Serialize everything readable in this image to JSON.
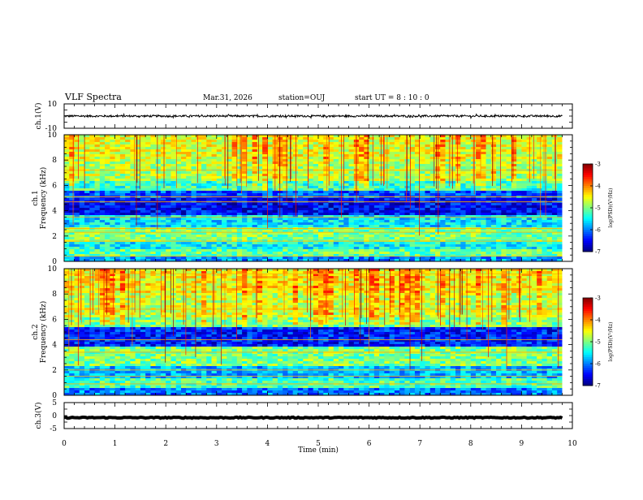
{
  "header": {
    "title": "VLF Spectra",
    "date": "Mar.31, 2026",
    "station": "station=OUJ",
    "start_ut": "start  UT =   8 : 10 : 0"
  },
  "chart_data": [
    {
      "type": "line",
      "id": "ch1-waveform",
      "ylabel": "ch.1(V)",
      "ylim": [
        -10,
        10
      ],
      "yticks": [
        "10",
        "-10"
      ],
      "xlim": [
        0,
        10
      ],
      "trace_level": 0,
      "trace_amplitude": 0.8
    },
    {
      "type": "heatmap",
      "id": "ch1-spectrogram",
      "ylabel_top": "ch.1",
      "ylabel": "Frequency (kHz)",
      "ylim": [
        0,
        10
      ],
      "yticks": [
        "0",
        "2",
        "4",
        "6",
        "8",
        "10"
      ],
      "xlim": [
        0,
        10
      ],
      "data_end_min": 9.8,
      "colorbar": {
        "label": "log(PSD)(V²/Hz)",
        "range": [
          -7,
          -3
        ],
        "ticks": [
          "-3",
          "-4",
          "-5",
          "-6",
          "-7"
        ]
      },
      "bands": [
        {
          "f": [
            0,
            0.4
          ],
          "level": -5.9
        },
        {
          "f": [
            0.4,
            0.9
          ],
          "level": -5.1
        },
        {
          "f": [
            0.9,
            1.6
          ],
          "level": -5.5
        },
        {
          "f": [
            1.6,
            2.6
          ],
          "level": -5.0
        },
        {
          "f": [
            2.6,
            3.6
          ],
          "level": -5.6
        },
        {
          "f": [
            3.6,
            5.0
          ],
          "level": -6.5
        },
        {
          "f": [
            5.0,
            5.6
          ],
          "level": -6.2
        },
        {
          "f": [
            5.6,
            6.4
          ],
          "level": -5.3
        },
        {
          "f": [
            6.4,
            8.0
          ],
          "level": -4.8
        },
        {
          "f": [
            8.0,
            10.0
          ],
          "level": -4.6
        }
      ],
      "lines_khz": [
        0.4,
        1.6,
        2.3,
        2.6,
        3.5,
        4.7,
        5.1,
        7.2
      ]
    },
    {
      "type": "heatmap",
      "id": "ch2-spectrogram",
      "ylabel_top": "ch.2",
      "ylabel": "Frequency (kHz)",
      "ylim": [
        0,
        10
      ],
      "yticks": [
        "0",
        "2",
        "4",
        "6",
        "8",
        "10"
      ],
      "xlim": [
        0,
        10
      ],
      "data_end_min": 9.8,
      "colorbar": {
        "label": "log(PSD)(V²/Hz)",
        "range": [
          -7,
          -3
        ],
        "ticks": [
          "-3",
          "-4",
          "-5",
          "-6",
          "-7"
        ]
      },
      "bands": [
        {
          "f": [
            0,
            0.5
          ],
          "level": -6.0
        },
        {
          "f": [
            0.5,
            1.4
          ],
          "level": -5.2
        },
        {
          "f": [
            1.4,
            2.4
          ],
          "level": -5.8
        },
        {
          "f": [
            2.4,
            3.8
          ],
          "level": -5.0
        },
        {
          "f": [
            3.8,
            5.4
          ],
          "level": -6.4
        },
        {
          "f": [
            5.4,
            6.2
          ],
          "level": -5.0
        },
        {
          "f": [
            6.2,
            8.0
          ],
          "level": -4.7
        },
        {
          "f": [
            8.0,
            10.0
          ],
          "level": -4.5
        }
      ],
      "lines_khz": [
        0.9,
        1.5,
        2.0,
        3.4,
        4.4,
        6.8,
        9.6
      ]
    },
    {
      "type": "line",
      "id": "ch3-waveform",
      "ylabel": "ch.3(V)",
      "ylim": [
        -5,
        5
      ],
      "yticks": [
        "5",
        "0",
        "-5"
      ],
      "xlim": [
        0,
        10
      ],
      "trace_level": -0.8,
      "trace_amplitude": 0.2
    }
  ],
  "x_axis": {
    "label": "Time (min)",
    "ticks": [
      "0",
      "1",
      "2",
      "3",
      "4",
      "5",
      "6",
      "7",
      "8",
      "9",
      "10"
    ]
  },
  "colors": {
    "frame": "#000000",
    "background": "#ffffff"
  }
}
